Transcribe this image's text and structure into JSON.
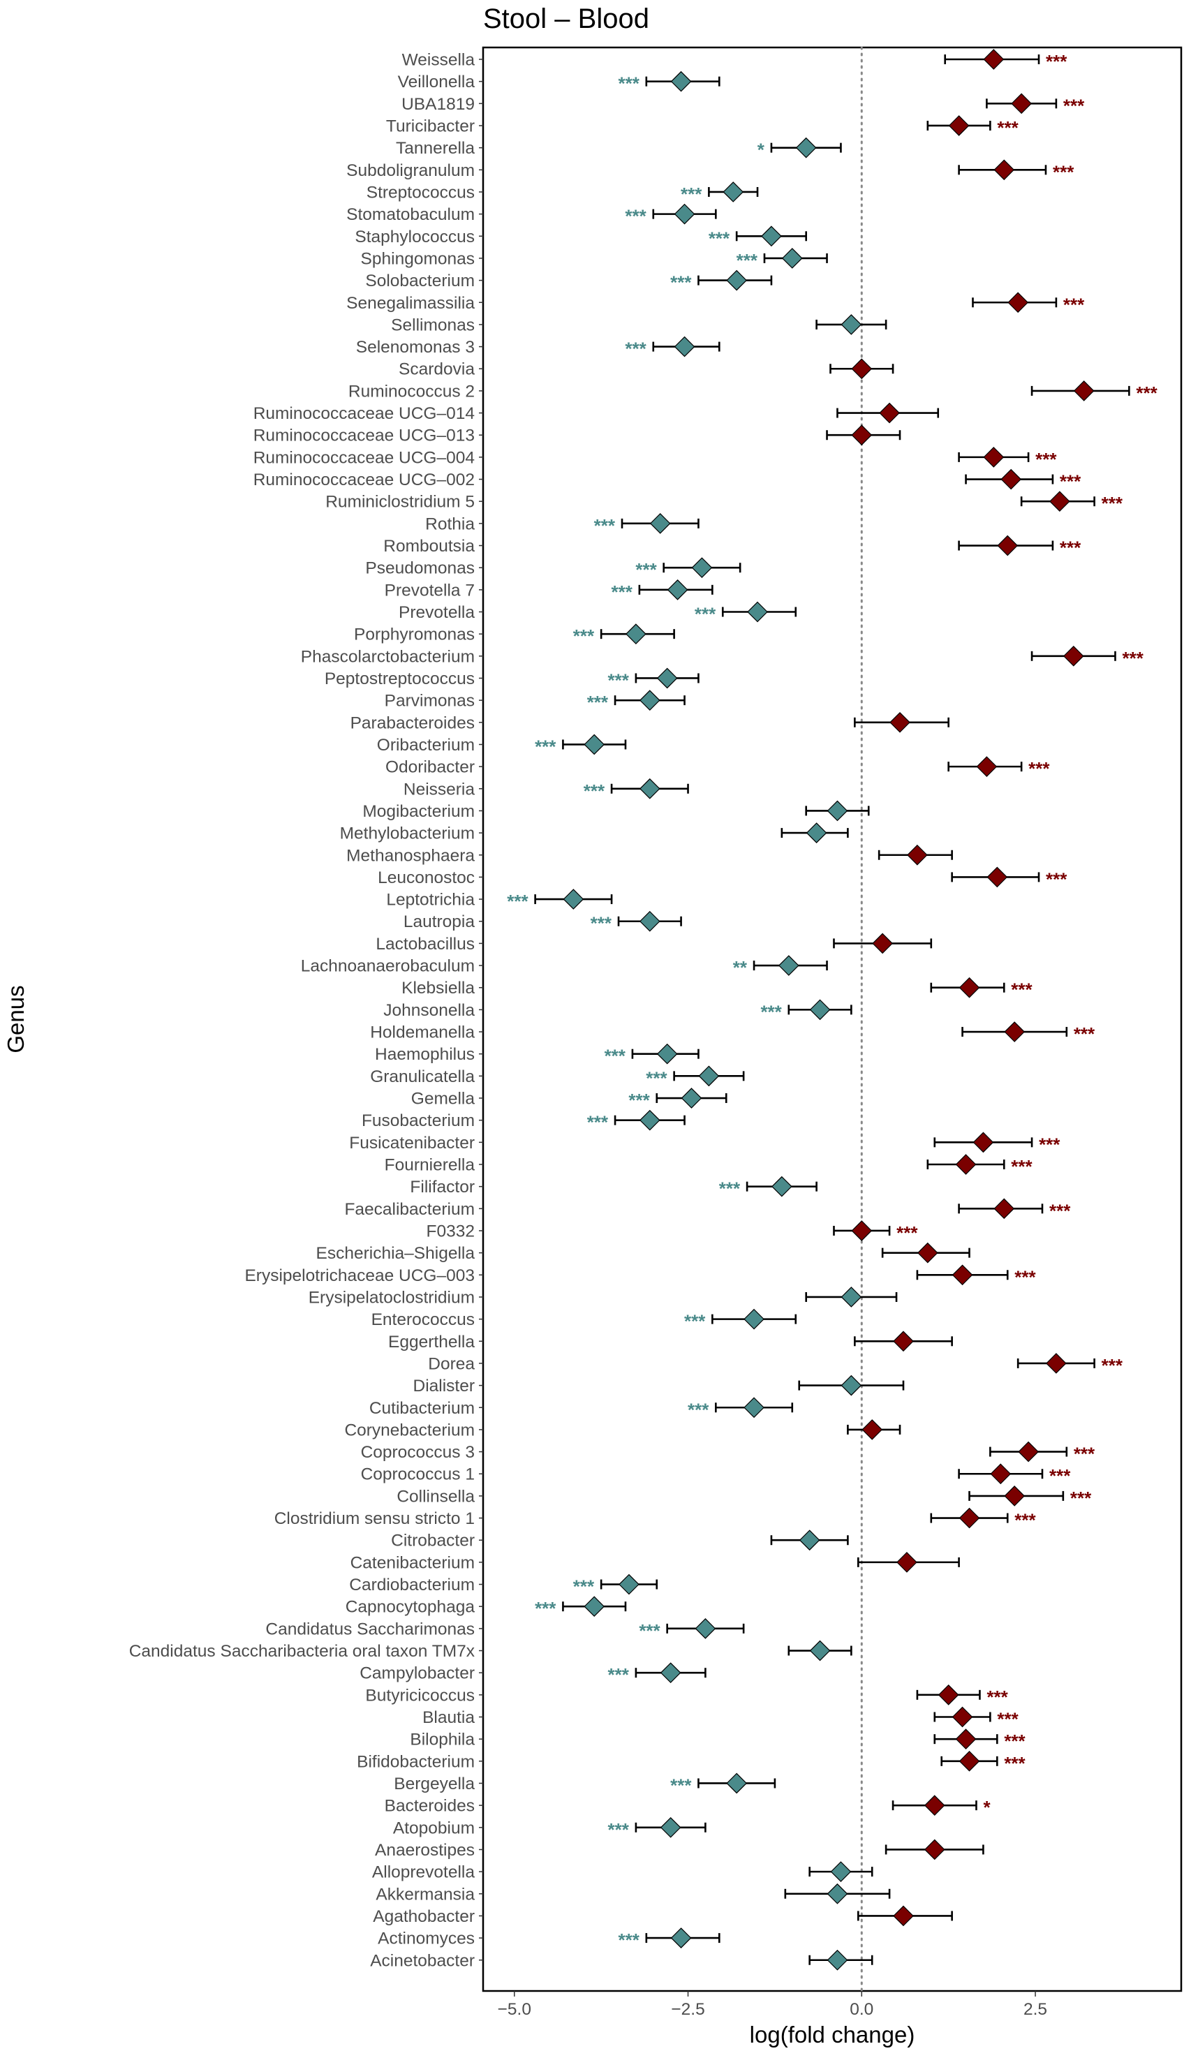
{
  "chart_data": {
    "type": "forest",
    "title": "Stool – Blood",
    "xlabel": "log(fold change)",
    "ylabel": "Genus",
    "xlim": [
      -5.45,
      4.6
    ],
    "xticks": [
      -5.0,
      -2.5,
      0.0,
      2.5
    ],
    "xtick_labels": [
      "−5.0",
      "−2.5",
      "0.0",
      "2.5"
    ],
    "reference_line": 0,
    "colors": {
      "negative": "#4a8a8a",
      "positive": "#7a0000",
      "errorbar": "#000000",
      "refline": "#888888"
    },
    "points": [
      {
        "genus": "Weissella",
        "estimate": 1.9,
        "low": 1.2,
        "high": 2.55,
        "sig": "***"
      },
      {
        "genus": "Veillonella",
        "estimate": -2.6,
        "low": -3.1,
        "high": -2.05,
        "sig": "***"
      },
      {
        "genus": "UBA1819",
        "estimate": 2.3,
        "low": 1.8,
        "high": 2.8,
        "sig": "***"
      },
      {
        "genus": "Turicibacter",
        "estimate": 1.4,
        "low": 0.95,
        "high": 1.85,
        "sig": "***"
      },
      {
        "genus": "Tannerella",
        "estimate": -0.8,
        "low": -1.3,
        "high": -0.3,
        "sig": "*"
      },
      {
        "genus": "Subdoligranulum",
        "estimate": 2.05,
        "low": 1.4,
        "high": 2.65,
        "sig": "***"
      },
      {
        "genus": "Streptococcus",
        "estimate": -1.85,
        "low": -2.2,
        "high": -1.5,
        "sig": "***"
      },
      {
        "genus": "Stomatobaculum",
        "estimate": -2.55,
        "low": -3.0,
        "high": -2.1,
        "sig": "***"
      },
      {
        "genus": "Staphylococcus",
        "estimate": -1.3,
        "low": -1.8,
        "high": -0.8,
        "sig": "***"
      },
      {
        "genus": "Sphingomonas",
        "estimate": -1.0,
        "low": -1.4,
        "high": -0.5,
        "sig": "***"
      },
      {
        "genus": "Solobacterium",
        "estimate": -1.8,
        "low": -2.35,
        "high": -1.3,
        "sig": "***"
      },
      {
        "genus": "Senegalimassilia",
        "estimate": 2.25,
        "low": 1.6,
        "high": 2.8,
        "sig": "***"
      },
      {
        "genus": "Sellimonas",
        "estimate": -0.15,
        "low": -0.65,
        "high": 0.35,
        "sig": ""
      },
      {
        "genus": "Selenomonas 3",
        "estimate": -2.55,
        "low": -3.0,
        "high": -2.05,
        "sig": "***"
      },
      {
        "genus": "Scardovia",
        "estimate": 0.0,
        "low": -0.45,
        "high": 0.45,
        "sig": ""
      },
      {
        "genus": "Ruminococcus 2",
        "estimate": 3.2,
        "low": 2.45,
        "high": 3.85,
        "sig": "***"
      },
      {
        "genus": "Ruminococcaceae UCG–014",
        "estimate": 0.4,
        "low": -0.35,
        "high": 1.1,
        "sig": ""
      },
      {
        "genus": "Ruminococcaceae UCG–013",
        "estimate": 0.0,
        "low": -0.5,
        "high": 0.55,
        "sig": ""
      },
      {
        "genus": "Ruminococcaceae UCG–004",
        "estimate": 1.9,
        "low": 1.4,
        "high": 2.4,
        "sig": "***"
      },
      {
        "genus": "Ruminococcaceae UCG–002",
        "estimate": 2.15,
        "low": 1.5,
        "high": 2.75,
        "sig": "***"
      },
      {
        "genus": "Ruminiclostridium 5",
        "estimate": 2.85,
        "low": 2.3,
        "high": 3.35,
        "sig": "***"
      },
      {
        "genus": "Rothia",
        "estimate": -2.9,
        "low": -3.45,
        "high": -2.35,
        "sig": "***"
      },
      {
        "genus": "Romboutsia",
        "estimate": 2.1,
        "low": 1.4,
        "high": 2.75,
        "sig": "***"
      },
      {
        "genus": "Pseudomonas",
        "estimate": -2.3,
        "low": -2.85,
        "high": -1.75,
        "sig": "***"
      },
      {
        "genus": "Prevotella 7",
        "estimate": -2.65,
        "low": -3.2,
        "high": -2.15,
        "sig": "***"
      },
      {
        "genus": "Prevotella",
        "estimate": -1.5,
        "low": -2.0,
        "high": -0.95,
        "sig": "***"
      },
      {
        "genus": "Porphyromonas",
        "estimate": -3.25,
        "low": -3.75,
        "high": -2.7,
        "sig": "***"
      },
      {
        "genus": "Phascolarctobacterium",
        "estimate": 3.05,
        "low": 2.45,
        "high": 3.65,
        "sig": "***"
      },
      {
        "genus": "Peptostreptococcus",
        "estimate": -2.8,
        "low": -3.25,
        "high": -2.35,
        "sig": "***"
      },
      {
        "genus": "Parvimonas",
        "estimate": -3.05,
        "low": -3.55,
        "high": -2.55,
        "sig": "***"
      },
      {
        "genus": "Parabacteroides",
        "estimate": 0.55,
        "low": -0.1,
        "high": 1.25,
        "sig": ""
      },
      {
        "genus": "Oribacterium",
        "estimate": -3.85,
        "low": -4.3,
        "high": -3.4,
        "sig": "***"
      },
      {
        "genus": "Odoribacter",
        "estimate": 1.8,
        "low": 1.25,
        "high": 2.3,
        "sig": "***"
      },
      {
        "genus": "Neisseria",
        "estimate": -3.05,
        "low": -3.6,
        "high": -2.5,
        "sig": "***"
      },
      {
        "genus": "Mogibacterium",
        "estimate": -0.35,
        "low": -0.8,
        "high": 0.1,
        "sig": ""
      },
      {
        "genus": "Methylobacterium",
        "estimate": -0.65,
        "low": -1.15,
        "high": -0.2,
        "sig": ""
      },
      {
        "genus": "Methanosphaera",
        "estimate": 0.8,
        "low": 0.25,
        "high": 1.3,
        "sig": ""
      },
      {
        "genus": "Leuconostoc",
        "estimate": 1.95,
        "low": 1.3,
        "high": 2.55,
        "sig": "***"
      },
      {
        "genus": "Leptotrichia",
        "estimate": -4.15,
        "low": -4.7,
        "high": -3.6,
        "sig": "***"
      },
      {
        "genus": "Lautropia",
        "estimate": -3.05,
        "low": -3.5,
        "high": -2.6,
        "sig": "***"
      },
      {
        "genus": "Lactobacillus",
        "estimate": 0.3,
        "low": -0.4,
        "high": 1.0,
        "sig": ""
      },
      {
        "genus": "Lachnoanaerobaculum",
        "estimate": -1.05,
        "low": -1.55,
        "high": -0.5,
        "sig": "**"
      },
      {
        "genus": "Klebsiella",
        "estimate": 1.55,
        "low": 1.0,
        "high": 2.05,
        "sig": "***"
      },
      {
        "genus": "Johnsonella",
        "estimate": -0.6,
        "low": -1.05,
        "high": -0.15,
        "sig": "***"
      },
      {
        "genus": "Holdemanella",
        "estimate": 2.2,
        "low": 1.45,
        "high": 2.95,
        "sig": "***"
      },
      {
        "genus": "Haemophilus",
        "estimate": -2.8,
        "low": -3.3,
        "high": -2.35,
        "sig": "***"
      },
      {
        "genus": "Granulicatella",
        "estimate": -2.2,
        "low": -2.7,
        "high": -1.7,
        "sig": "***"
      },
      {
        "genus": "Gemella",
        "estimate": -2.45,
        "low": -2.95,
        "high": -1.95,
        "sig": "***"
      },
      {
        "genus": "Fusobacterium",
        "estimate": -3.05,
        "low": -3.55,
        "high": -2.55,
        "sig": "***"
      },
      {
        "genus": "Fusicatenibacter",
        "estimate": 1.75,
        "low": 1.05,
        "high": 2.45,
        "sig": "***"
      },
      {
        "genus": "Fournierella",
        "estimate": 1.5,
        "low": 0.95,
        "high": 2.05,
        "sig": "***"
      },
      {
        "genus": "Filifactor",
        "estimate": -1.15,
        "low": -1.65,
        "high": -0.65,
        "sig": "***"
      },
      {
        "genus": "Faecalibacterium",
        "estimate": 2.05,
        "low": 1.4,
        "high": 2.6,
        "sig": "***"
      },
      {
        "genus": "F0332",
        "estimate": 0.0,
        "low": -0.4,
        "high": 0.4,
        "sig": "***"
      },
      {
        "genus": "Escherichia–Shigella",
        "estimate": 0.95,
        "low": 0.3,
        "high": 1.55,
        "sig": ""
      },
      {
        "genus": "Erysipelotrichaceae UCG–003",
        "estimate": 1.45,
        "low": 0.8,
        "high": 2.1,
        "sig": "***"
      },
      {
        "genus": "Erysipelatoclostridium",
        "estimate": -0.15,
        "low": -0.8,
        "high": 0.5,
        "sig": ""
      },
      {
        "genus": "Enterococcus",
        "estimate": -1.55,
        "low": -2.15,
        "high": -0.95,
        "sig": "***"
      },
      {
        "genus": "Eggerthella",
        "estimate": 0.6,
        "low": -0.1,
        "high": 1.3,
        "sig": ""
      },
      {
        "genus": "Dorea",
        "estimate": 2.8,
        "low": 2.25,
        "high": 3.35,
        "sig": "***"
      },
      {
        "genus": "Dialister",
        "estimate": -0.15,
        "low": -0.9,
        "high": 0.6,
        "sig": ""
      },
      {
        "genus": "Cutibacterium",
        "estimate": -1.55,
        "low": -2.1,
        "high": -1.0,
        "sig": "***"
      },
      {
        "genus": "Corynebacterium",
        "estimate": 0.15,
        "low": -0.2,
        "high": 0.55,
        "sig": ""
      },
      {
        "genus": "Coprococcus 3",
        "estimate": 2.4,
        "low": 1.85,
        "high": 2.95,
        "sig": "***"
      },
      {
        "genus": "Coprococcus 1",
        "estimate": 2.0,
        "low": 1.4,
        "high": 2.6,
        "sig": "***"
      },
      {
        "genus": "Collinsella",
        "estimate": 2.2,
        "low": 1.55,
        "high": 2.9,
        "sig": "***"
      },
      {
        "genus": "Clostridium sensu stricto 1",
        "estimate": 1.55,
        "low": 1.0,
        "high": 2.1,
        "sig": "***"
      },
      {
        "genus": "Citrobacter",
        "estimate": -0.75,
        "low": -1.3,
        "high": -0.2,
        "sig": ""
      },
      {
        "genus": "Catenibacterium",
        "estimate": 0.65,
        "low": -0.05,
        "high": 1.4,
        "sig": ""
      },
      {
        "genus": "Cardiobacterium",
        "estimate": -3.35,
        "low": -3.75,
        "high": -2.95,
        "sig": "***"
      },
      {
        "genus": "Capnocytophaga",
        "estimate": -3.85,
        "low": -4.3,
        "high": -3.4,
        "sig": "***"
      },
      {
        "genus": "Candidatus Saccharimonas",
        "estimate": -2.25,
        "low": -2.8,
        "high": -1.7,
        "sig": "***"
      },
      {
        "genus": "Candidatus Saccharibacteria oral taxon TM7x",
        "estimate": -0.6,
        "low": -1.05,
        "high": -0.15,
        "sig": ""
      },
      {
        "genus": "Campylobacter",
        "estimate": -2.75,
        "low": -3.25,
        "high": -2.25,
        "sig": "***"
      },
      {
        "genus": "Butyricicoccus",
        "estimate": 1.25,
        "low": 0.8,
        "high": 1.7,
        "sig": "***"
      },
      {
        "genus": "Blautia",
        "estimate": 1.45,
        "low": 1.05,
        "high": 1.85,
        "sig": "***"
      },
      {
        "genus": "Bilophila",
        "estimate": 1.5,
        "low": 1.05,
        "high": 1.95,
        "sig": "***"
      },
      {
        "genus": "Bifidobacterium",
        "estimate": 1.55,
        "low": 1.15,
        "high": 1.95,
        "sig": "***"
      },
      {
        "genus": "Bergeyella",
        "estimate": -1.8,
        "low": -2.35,
        "high": -1.25,
        "sig": "***"
      },
      {
        "genus": "Bacteroides",
        "estimate": 1.05,
        "low": 0.45,
        "high": 1.65,
        "sig": "*"
      },
      {
        "genus": "Atopobium",
        "estimate": -2.75,
        "low": -3.25,
        "high": -2.25,
        "sig": "***"
      },
      {
        "genus": "Anaerostipes",
        "estimate": 1.05,
        "low": 0.35,
        "high": 1.75,
        "sig": ""
      },
      {
        "genus": "Alloprevotella",
        "estimate": -0.3,
        "low": -0.75,
        "high": 0.15,
        "sig": ""
      },
      {
        "genus": "Akkermansia",
        "estimate": -0.35,
        "low": -1.1,
        "high": 0.4,
        "sig": ""
      },
      {
        "genus": "Agathobacter",
        "estimate": 0.6,
        "low": -0.05,
        "high": 1.3,
        "sig": ""
      },
      {
        "genus": "Actinomyces",
        "estimate": -2.6,
        "low": -3.1,
        "high": -2.05,
        "sig": "***"
      },
      {
        "genus": "Acinetobacter",
        "estimate": -0.35,
        "low": -0.75,
        "high": 0.15,
        "sig": ""
      }
    ]
  }
}
